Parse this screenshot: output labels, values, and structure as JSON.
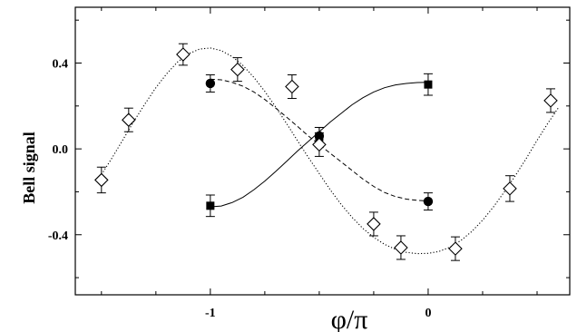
{
  "chart_data": {
    "type": "scatter",
    "title": "",
    "xlabel": "φ/π",
    "ylabel": "Bell signal",
    "xlim": [
      -1.62,
      0.65
    ],
    "ylim": [
      -0.68,
      0.66
    ],
    "xticks": [
      {
        "value": -1,
        "label": "-1"
      },
      {
        "value": 0,
        "label": "0"
      }
    ],
    "yticks": [
      {
        "value": 0.4,
        "label": "0.4"
      },
      {
        "value": 0.0,
        "label": "0.0"
      },
      {
        "value": -0.4,
        "label": "-0.4"
      }
    ],
    "grid": false,
    "series": [
      {
        "marker": "square",
        "line_style": "solid",
        "points": [
          {
            "x": -1.0,
            "y": -0.265,
            "err": 0.05
          },
          {
            "x": -0.5,
            "y": 0.055,
            "err": 0.045
          },
          {
            "x": 0.0,
            "y": 0.3,
            "err": 0.05
          }
        ],
        "curve": [
          {
            "x": -1.0,
            "y": -0.27
          },
          {
            "x": -0.95,
            "y": -0.266
          },
          {
            "x": -0.9,
            "y": -0.25
          },
          {
            "x": -0.85,
            "y": -0.225
          },
          {
            "x": -0.8,
            "y": -0.19
          },
          {
            "x": -0.75,
            "y": -0.15
          },
          {
            "x": -0.7,
            "y": -0.105
          },
          {
            "x": -0.65,
            "y": -0.058
          },
          {
            "x": -0.6,
            "y": -0.01
          },
          {
            "x": -0.55,
            "y": 0.035
          },
          {
            "x": -0.5,
            "y": 0.08
          },
          {
            "x": -0.45,
            "y": 0.125
          },
          {
            "x": -0.4,
            "y": 0.165
          },
          {
            "x": -0.35,
            "y": 0.205
          },
          {
            "x": -0.3,
            "y": 0.238
          },
          {
            "x": -0.25,
            "y": 0.265
          },
          {
            "x": -0.2,
            "y": 0.285
          },
          {
            "x": -0.15,
            "y": 0.298
          },
          {
            "x": -0.1,
            "y": 0.305
          },
          {
            "x": -0.05,
            "y": 0.309
          },
          {
            "x": 0.0,
            "y": 0.31
          }
        ]
      },
      {
        "marker": "circle",
        "line_style": "dashed",
        "points": [
          {
            "x": -1.0,
            "y": 0.305,
            "err": 0.04
          },
          {
            "x": -0.5,
            "y": 0.06,
            "err": 0.04
          },
          {
            "x": 0.0,
            "y": -0.245,
            "err": 0.04
          }
        ],
        "curve": [
          {
            "x": -1.0,
            "y": 0.325
          },
          {
            "x": -0.95,
            "y": 0.322
          },
          {
            "x": -0.9,
            "y": 0.31
          },
          {
            "x": -0.85,
            "y": 0.292
          },
          {
            "x": -0.8,
            "y": 0.265
          },
          {
            "x": -0.75,
            "y": 0.23
          },
          {
            "x": -0.7,
            "y": 0.19
          },
          {
            "x": -0.65,
            "y": 0.148
          },
          {
            "x": -0.6,
            "y": 0.105
          },
          {
            "x": -0.55,
            "y": 0.06
          },
          {
            "x": -0.5,
            "y": 0.02
          },
          {
            "x": -0.45,
            "y": -0.02
          },
          {
            "x": -0.4,
            "y": -0.06
          },
          {
            "x": -0.35,
            "y": -0.1
          },
          {
            "x": -0.3,
            "y": -0.14
          },
          {
            "x": -0.25,
            "y": -0.175
          },
          {
            "x": -0.2,
            "y": -0.203
          },
          {
            "x": -0.15,
            "y": -0.222
          },
          {
            "x": -0.1,
            "y": -0.234
          },
          {
            "x": -0.05,
            "y": -0.24
          },
          {
            "x": 0.0,
            "y": -0.242
          }
        ]
      },
      {
        "marker": "diamond",
        "line_style": "dotted",
        "points": [
          {
            "x": -1.5,
            "y": -0.145,
            "err": 0.06
          },
          {
            "x": -1.375,
            "y": 0.135,
            "err": 0.055
          },
          {
            "x": -1.125,
            "y": 0.44,
            "err": 0.05
          },
          {
            "x": -0.875,
            "y": 0.37,
            "err": 0.055
          },
          {
            "x": -0.625,
            "y": 0.29,
            "err": 0.055
          },
          {
            "x": -0.5,
            "y": 0.02,
            "err": 0.055
          },
          {
            "x": -0.25,
            "y": -0.35,
            "err": 0.055
          },
          {
            "x": -0.125,
            "y": -0.46,
            "err": 0.055
          },
          {
            "x": 0.125,
            "y": -0.465,
            "err": 0.055
          },
          {
            "x": 0.375,
            "y": -0.185,
            "err": 0.06
          },
          {
            "x": 0.5625,
            "y": 0.225,
            "err": 0.055
          }
        ],
        "curve": [
          {
            "x": -1.5,
            "y": -0.12
          },
          {
            "x": -1.45,
            "y": -0.04
          },
          {
            "x": -1.4,
            "y": 0.045
          },
          {
            "x": -1.35,
            "y": 0.13
          },
          {
            "x": -1.3,
            "y": 0.21
          },
          {
            "x": -1.25,
            "y": 0.285
          },
          {
            "x": -1.2,
            "y": 0.35
          },
          {
            "x": -1.15,
            "y": 0.405
          },
          {
            "x": -1.1,
            "y": 0.443
          },
          {
            "x": -1.05,
            "y": 0.465
          },
          {
            "x": -1.0,
            "y": 0.47
          },
          {
            "x": -0.95,
            "y": 0.458
          },
          {
            "x": -0.9,
            "y": 0.43
          },
          {
            "x": -0.85,
            "y": 0.388
          },
          {
            "x": -0.8,
            "y": 0.333
          },
          {
            "x": -0.75,
            "y": 0.268
          },
          {
            "x": -0.7,
            "y": 0.195
          },
          {
            "x": -0.65,
            "y": 0.118
          },
          {
            "x": -0.6,
            "y": 0.038
          },
          {
            "x": -0.55,
            "y": -0.04
          },
          {
            "x": -0.5,
            "y": -0.115
          },
          {
            "x": -0.45,
            "y": -0.19
          },
          {
            "x": -0.4,
            "y": -0.258
          },
          {
            "x": -0.35,
            "y": -0.318
          },
          {
            "x": -0.3,
            "y": -0.37
          },
          {
            "x": -0.25,
            "y": -0.412
          },
          {
            "x": -0.2,
            "y": -0.445
          },
          {
            "x": -0.15,
            "y": -0.468
          },
          {
            "x": -0.1,
            "y": -0.482
          },
          {
            "x": -0.05,
            "y": -0.488
          },
          {
            "x": 0.0,
            "y": -0.487
          },
          {
            "x": 0.05,
            "y": -0.478
          },
          {
            "x": 0.1,
            "y": -0.458
          },
          {
            "x": 0.15,
            "y": -0.427
          },
          {
            "x": 0.2,
            "y": -0.385
          },
          {
            "x": 0.25,
            "y": -0.332
          },
          {
            "x": 0.3,
            "y": -0.27
          },
          {
            "x": 0.35,
            "y": -0.2
          },
          {
            "x": 0.4,
            "y": -0.125
          },
          {
            "x": 0.45,
            "y": -0.045
          },
          {
            "x": 0.5,
            "y": 0.04
          },
          {
            "x": 0.55,
            "y": 0.12
          },
          {
            "x": 0.6,
            "y": 0.195
          }
        ]
      }
    ]
  }
}
